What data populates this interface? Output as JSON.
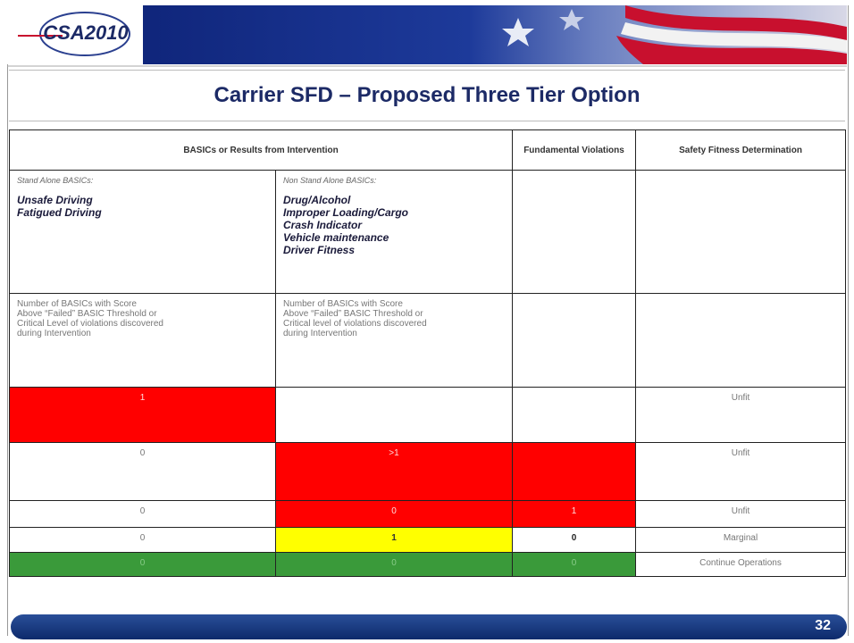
{
  "header": {
    "logo": "CSA2010"
  },
  "title": "Carrier SFD – Proposed Three Tier Option",
  "table": {
    "header": [
      "BASICs or Results from Intervention",
      "Fundamental Violations",
      "Safety Fitness Determination"
    ],
    "stand_alone": {
      "label": "Stand Alone BASICs:",
      "items": [
        "Unsafe Driving",
        "Fatigued Driving"
      ]
    },
    "non_stand_alone": {
      "label": "Non Stand Alone BASICs:",
      "items": [
        "Drug/Alcohol",
        "Improper Loading/Cargo",
        "Crash Indicator",
        "Vehicle maintenance",
        "Driver Fitness"
      ]
    },
    "description": [
      [
        "Number of BASICs with Score",
        "Above “Failed” BASIC Threshold or",
        "Critical Level of violations discovered",
        "during Intervention"
      ],
      [
        "Number of BASICs with Score",
        "Above  “Failed” BASIC Threshold or",
        "Critical level of violations discovered",
        "during Intervention"
      ]
    ],
    "rows": [
      {
        "stand_alone": "1",
        "determination": "Unfit"
      },
      {
        "stand_alone": "0",
        "non_stand_alone": ">1",
        "determination": "Unfit"
      },
      {
        "stand_alone": "0",
        "non_stand_alone": "0",
        "fundamental": "1",
        "determination": "Unfit"
      },
      {
        "stand_alone": "0",
        "non_stand_alone": "1",
        "fundamental": "0",
        "determination": "Marginal"
      },
      {
        "stand_alone": "0",
        "non_stand_alone": "0",
        "fundamental": "0",
        "determination": "Continue Operations"
      }
    ]
  },
  "footer": {
    "page": "32"
  }
}
